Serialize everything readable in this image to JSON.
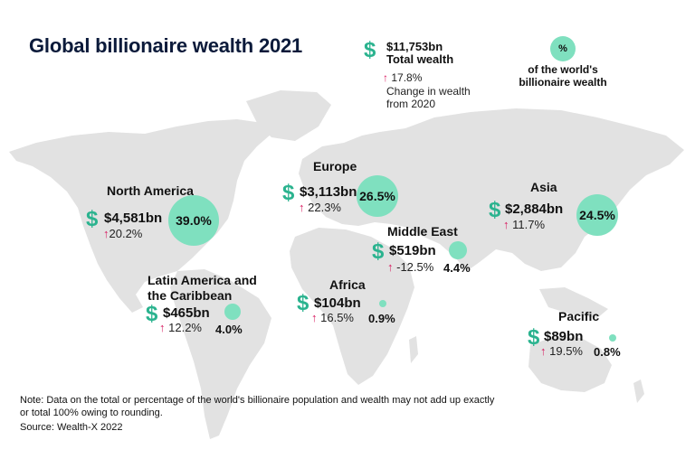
{
  "title": "Global billionaire wealth 2021",
  "summary": {
    "total_value": "$11,753bn",
    "total_label": "Total wealth",
    "change_value": "17.8%",
    "change_label_line1": "Change in wealth",
    "change_label_line2": "from 2020"
  },
  "legend": {
    "circle_symbol": "%",
    "line1": "of the world's",
    "line2": "billionaire wealth"
  },
  "currency_symbol": "$",
  "regions": [
    {
      "key": "north_america",
      "name_line1": "North America",
      "name_line2": "",
      "wealth": "$4,581bn",
      "change": "20.2%",
      "share": "39.0%"
    },
    {
      "key": "europe",
      "name_line1": "Europe",
      "name_line2": "",
      "wealth": "$3,113bn",
      "change": "22.3%",
      "share": "26.5%"
    },
    {
      "key": "asia",
      "name_line1": "Asia",
      "name_line2": "",
      "wealth": "$2,884bn",
      "change": "11.7%",
      "share": "24.5%"
    },
    {
      "key": "middle_east",
      "name_line1": "Middle East",
      "name_line2": "",
      "wealth": "$519bn",
      "change": "-12.5%",
      "share": "4.4%"
    },
    {
      "key": "latin_america",
      "name_line1": "Latin America and",
      "name_line2": "the Caribbean",
      "wealth": "$465bn",
      "change": "12.2%",
      "share": "4.0%"
    },
    {
      "key": "africa",
      "name_line1": "Africa",
      "name_line2": "",
      "wealth": "$104bn",
      "change": "16.5%",
      "share": "0.9%"
    },
    {
      "key": "pacific",
      "name_line1": "Pacific",
      "name_line2": "",
      "wealth": "$89bn",
      "change": "19.5%",
      "share": "0.8%"
    }
  ],
  "note_line1": "Note: Data on the total or percentage of the world's billionaire population and wealth may not add up exactly",
  "note_line2": "or total 100% owing to rounding.",
  "source": "Source: Wealth-X 2022",
  "colors": {
    "bubble": "#7fe0bf",
    "dollar": "#2bb38f",
    "arrow": "#d81b60",
    "map": "#e1e1e1",
    "title": "#0b1a3a"
  }
}
